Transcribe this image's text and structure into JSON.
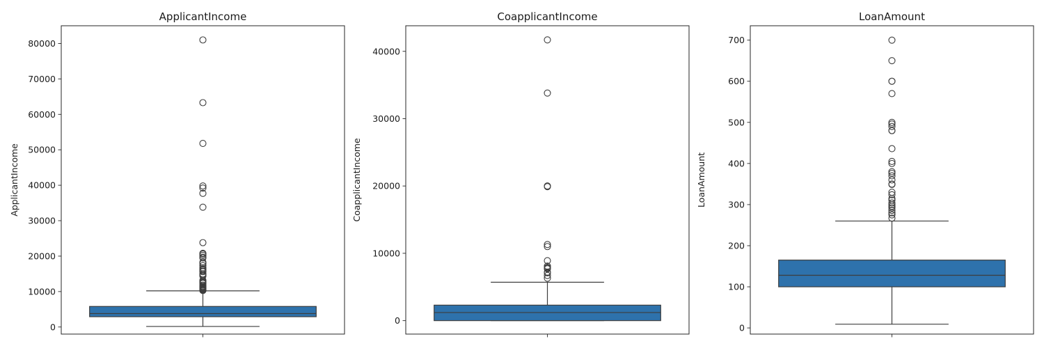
{
  "chart_data": [
    {
      "type": "box",
      "title": "ApplicantIncome",
      "xlabel": "",
      "ylabel": "ApplicantIncome",
      "ylim": [
        -2000,
        85000
      ],
      "yticks": [
        0,
        10000,
        20000,
        30000,
        40000,
        50000,
        60000,
        70000,
        80000
      ],
      "box": {
        "whisker_low": 150,
        "q1": 2900,
        "median": 3800,
        "q3": 5800,
        "whisker_high": 10200
      },
      "outliers": [
        81000,
        63300,
        51800,
        39800,
        39200,
        37700,
        33800,
        23800,
        20800,
        20600,
        20200,
        19700,
        19500,
        18300,
        17900,
        17300,
        16700,
        16300,
        16100,
        15800,
        15600,
        15000,
        14900,
        14600,
        14400,
        13200,
        12900,
        12700,
        12500,
        12300,
        11800,
        11500,
        11400,
        11200,
        11000,
        10800,
        10700,
        10500,
        10400,
        10300
      ]
    },
    {
      "type": "box",
      "title": "CoapplicantIncome",
      "xlabel": "",
      "ylabel": "CoapplicantIncome",
      "ylim": [
        -2000,
        43800
      ],
      "yticks": [
        0,
        10000,
        20000,
        30000,
        40000
      ],
      "box": {
        "whisker_low": 0,
        "q1": 0,
        "median": 1200,
        "q3": 2300,
        "whisker_high": 5700
      },
      "outliers": [
        41700,
        33800,
        20000,
        19900,
        11300,
        11000,
        8900,
        8100,
        7900,
        7800,
        7700,
        7200,
        7100,
        6700,
        6300
      ]
    },
    {
      "type": "box",
      "title": "LoanAmount",
      "xlabel": "",
      "ylabel": "LoanAmount",
      "ylim": [
        -15,
        735
      ],
      "yticks": [
        0,
        100,
        200,
        300,
        400,
        500,
        600,
        700
      ],
      "box": {
        "whisker_low": 9,
        "q1": 100,
        "median": 128,
        "q3": 165,
        "whisker_high": 260
      },
      "outliers": [
        700,
        650,
        600,
        600,
        570,
        500,
        496,
        490,
        480,
        480,
        436,
        405,
        400,
        380,
        376,
        370,
        360,
        350,
        349,
        330,
        324,
        315,
        311,
        304,
        300,
        296,
        292,
        286,
        280,
        275,
        267
      ]
    }
  ],
  "colors": {
    "box_fill": "#2e72ac",
    "line": "#3d3d3d",
    "axis": "#262626"
  }
}
